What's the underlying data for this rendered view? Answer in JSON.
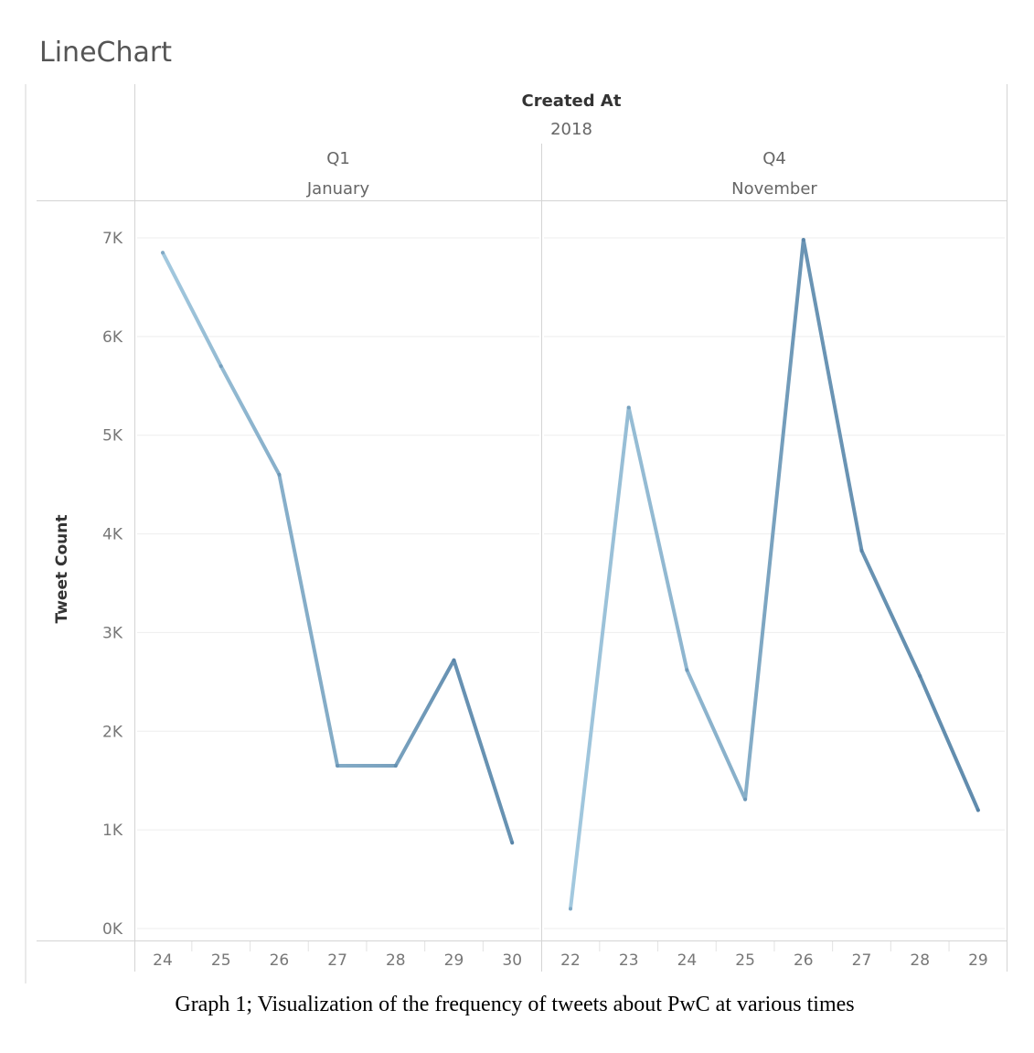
{
  "sheet_title": "LineChart",
  "header": {
    "field_label": "Created At",
    "year": "2018",
    "panes": [
      {
        "quarter": "Q1",
        "month": "January"
      },
      {
        "quarter": "Q4",
        "month": "November"
      }
    ]
  },
  "caption": "Graph 1; Visualization of the frequency of tweets about PwC at various times",
  "colors": {
    "light": "#b5d9ec",
    "dark": "#3f6d94",
    "grid": "#eeeeee",
    "rule": "#d4d4d4"
  },
  "chart_data": {
    "type": "line",
    "ylabel": "Tweet Count",
    "ylim": [
      0,
      7000
    ],
    "yticks": [
      0,
      1000,
      2000,
      3000,
      4000,
      5000,
      6000,
      7000
    ],
    "ytick_labels": [
      "0K",
      "1K",
      "2K",
      "3K",
      "4K",
      "5K",
      "6K",
      "7K"
    ],
    "grid": true,
    "panels": [
      {
        "quarter": "Q1",
        "month": "January",
        "x": [
          "24",
          "25",
          "26",
          "27",
          "28",
          "29",
          "30"
        ],
        "values": [
          6850,
          5700,
          4600,
          1650,
          1650,
          2720,
          870
        ]
      },
      {
        "quarter": "Q4",
        "month": "November",
        "x": [
          "22",
          "23",
          "24",
          "25",
          "26",
          "27",
          "28",
          "29"
        ],
        "values": [
          200,
          5280,
          2620,
          1310,
          6980,
          3830,
          2560,
          1200
        ]
      }
    ]
  }
}
